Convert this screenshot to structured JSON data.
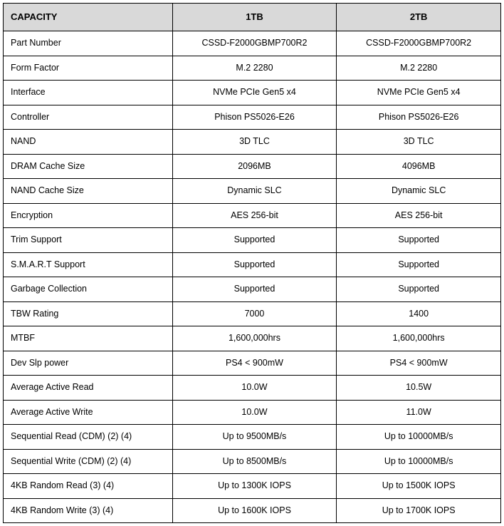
{
  "table": {
    "header_bg": "#d9d9d9",
    "border_color": "#000000",
    "font_family": "Arial, Helvetica, sans-serif",
    "cell_fontsize": 12.5,
    "header_fontsize": 13,
    "columns": [
      "CAPACITY",
      "1TB",
      "2TB"
    ],
    "column_widths_pct": [
      34,
      33,
      33
    ],
    "rows": [
      [
        "Part Number",
        "CSSD-F2000GBMP700R2",
        "CSSD-F2000GBMP700R2"
      ],
      [
        "Form Factor",
        "M.2 2280",
        "M.2 2280"
      ],
      [
        "Interface",
        "NVMe PCIe Gen5 x4",
        "NVMe PCIe Gen5 x4"
      ],
      [
        "Controller",
        "Phison PS5026-E26",
        "Phison PS5026-E26"
      ],
      [
        "NAND",
        "3D TLC",
        "3D TLC"
      ],
      [
        "DRAM Cache Size",
        "2096MB",
        "4096MB"
      ],
      [
        "NAND Cache Size",
        "Dynamic SLC",
        "Dynamic SLC"
      ],
      [
        "Encryption",
        "AES 256-bit",
        "AES 256-bit"
      ],
      [
        "Trim Support",
        "Supported",
        "Supported"
      ],
      [
        "S.M.A.R.T Support",
        "Supported",
        "Supported"
      ],
      [
        "Garbage Collection",
        "Supported",
        "Supported"
      ],
      [
        "TBW Rating",
        "7000",
        "1400"
      ],
      [
        "MTBF",
        "1,600,000hrs",
        "1,600,000hrs"
      ],
      [
        "Dev Slp power",
        "PS4 < 900mW",
        "PS4 < 900mW"
      ],
      [
        "Average Active Read",
        "10.0W",
        "10.5W"
      ],
      [
        "Average Active Write",
        "10.0W",
        "11.0W"
      ],
      [
        "Sequential Read (CDM) (2) (4)",
        "Up to 9500MB/s",
        "Up to 10000MB/s"
      ],
      [
        "Sequential Write (CDM) (2) (4)",
        "Up to 8500MB/s",
        "Up to 10000MB/s"
      ],
      [
        "4KB Random Read (3) (4)",
        "Up to 1300K IOPS",
        "Up to 1500K IOPS"
      ],
      [
        "4KB Random Write (3) (4)",
        "Up to 1600K IOPS",
        "Up to 1700K IOPS"
      ]
    ]
  }
}
